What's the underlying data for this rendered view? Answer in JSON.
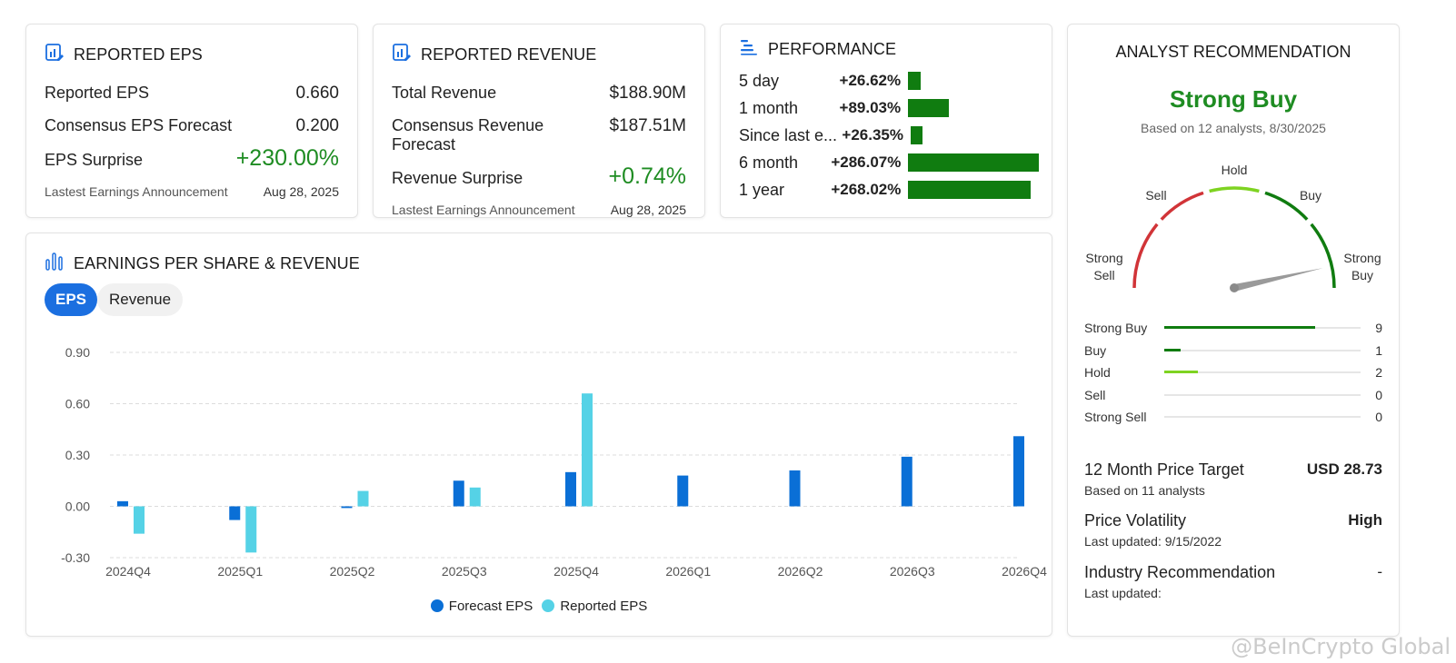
{
  "eps_card": {
    "title": "REPORTED EPS",
    "rows": [
      {
        "label": "Reported EPS",
        "value": "0.660"
      },
      {
        "label": "Consensus EPS Forecast",
        "value": "0.200"
      },
      {
        "label": "EPS Surprise",
        "value": "+230.00%"
      }
    ],
    "footer_label": "Lastest Earnings Announcement",
    "footer_date": "Aug 28, 2025"
  },
  "revenue_card": {
    "title": "REPORTED REVENUE",
    "rows": [
      {
        "label": "Total Revenue",
        "value": "$188.90M"
      },
      {
        "label": "Consensus Revenue Forecast",
        "value": "$187.51M"
      },
      {
        "label": "Revenue Surprise",
        "value": "+0.74%"
      }
    ],
    "footer_label": "Lastest Earnings Announcement",
    "footer_date": "Aug 28, 2025"
  },
  "performance": {
    "title": "PERFORMANCE",
    "bar_color": "#107c10",
    "rows": [
      {
        "label": "5 day",
        "pct": "+26.62%",
        "value": 26.62
      },
      {
        "label": "1 month",
        "pct": "+89.03%",
        "value": 89.03
      },
      {
        "label": "Since last e...",
        "pct": "+26.35%",
        "value": 26.35
      },
      {
        "label": "6 month",
        "pct": "+286.07%",
        "value": 286.07
      },
      {
        "label": "1 year",
        "pct": "+268.02%",
        "value": 268.02
      }
    ]
  },
  "eps_revenue": {
    "title": "EARNINGS PER SHARE & REVENUE",
    "tabs": [
      {
        "label": "EPS",
        "active": true
      },
      {
        "label": "Revenue",
        "active": false
      }
    ],
    "legend": [
      {
        "label": "Forecast EPS",
        "color": "#0a6fd6"
      },
      {
        "label": "Reported EPS",
        "color": "#55d2e6"
      }
    ]
  },
  "chart_data": {
    "type": "bar",
    "categories": [
      "2024Q4",
      "2025Q1",
      "2025Q2",
      "2025Q3",
      "2025Q4",
      "2026Q1",
      "2026Q2",
      "2026Q3",
      "2026Q4"
    ],
    "series": [
      {
        "name": "Forecast EPS",
        "values": [
          0.03,
          -0.08,
          -0.01,
          0.15,
          0.2,
          0.18,
          0.21,
          0.29,
          0.41
        ]
      },
      {
        "name": "Reported EPS",
        "values": [
          -0.16,
          -0.27,
          0.09,
          0.11,
          0.66,
          null,
          null,
          null,
          null
        ]
      }
    ],
    "yticks": [
      "0.90",
      "0.60",
      "0.30",
      "0.00",
      "-0.30"
    ],
    "ylim": [
      -0.3,
      0.9
    ],
    "grid": true,
    "legend": "bottom-center"
  },
  "analyst": {
    "title": "ANALYST RECOMMENDATION",
    "rating": "Strong Buy",
    "rating_color": "#1e8c22",
    "based_on": "Based on 12 analysts, 8/30/2025",
    "gauge_labels": {
      "strong_sell": "Strong\nSell",
      "sell": "Sell",
      "hold": "Hold",
      "buy": "Buy",
      "strong_buy": "Strong\nBuy"
    },
    "gauge_value": 0.93,
    "ratings": [
      {
        "label": "Strong Buy",
        "count": "9",
        "value": 9,
        "color": "#107c10"
      },
      {
        "label": "Buy",
        "count": "1",
        "value": 1,
        "color": "#107c10"
      },
      {
        "label": "Hold",
        "count": "2",
        "value": 2,
        "color": "#7ed321"
      },
      {
        "label": "Sell",
        "count": "0",
        "value": 0,
        "color": "#d13438"
      },
      {
        "label": "Strong Sell",
        "count": "0",
        "value": 0,
        "color": "#d13438"
      }
    ],
    "price_target_label": "12 Month Price Target",
    "price_target_value": "USD 28.73",
    "price_target_sub": "Based on 11 analysts",
    "volatility_label": "Price Volatility",
    "volatility_value": "High",
    "volatility_sub": "Last updated: 9/15/2022",
    "industry_label": "Industry Recommendation",
    "industry_value": "-",
    "industry_sub": "Last updated:"
  },
  "watermark": "@BeInCrypto Global"
}
